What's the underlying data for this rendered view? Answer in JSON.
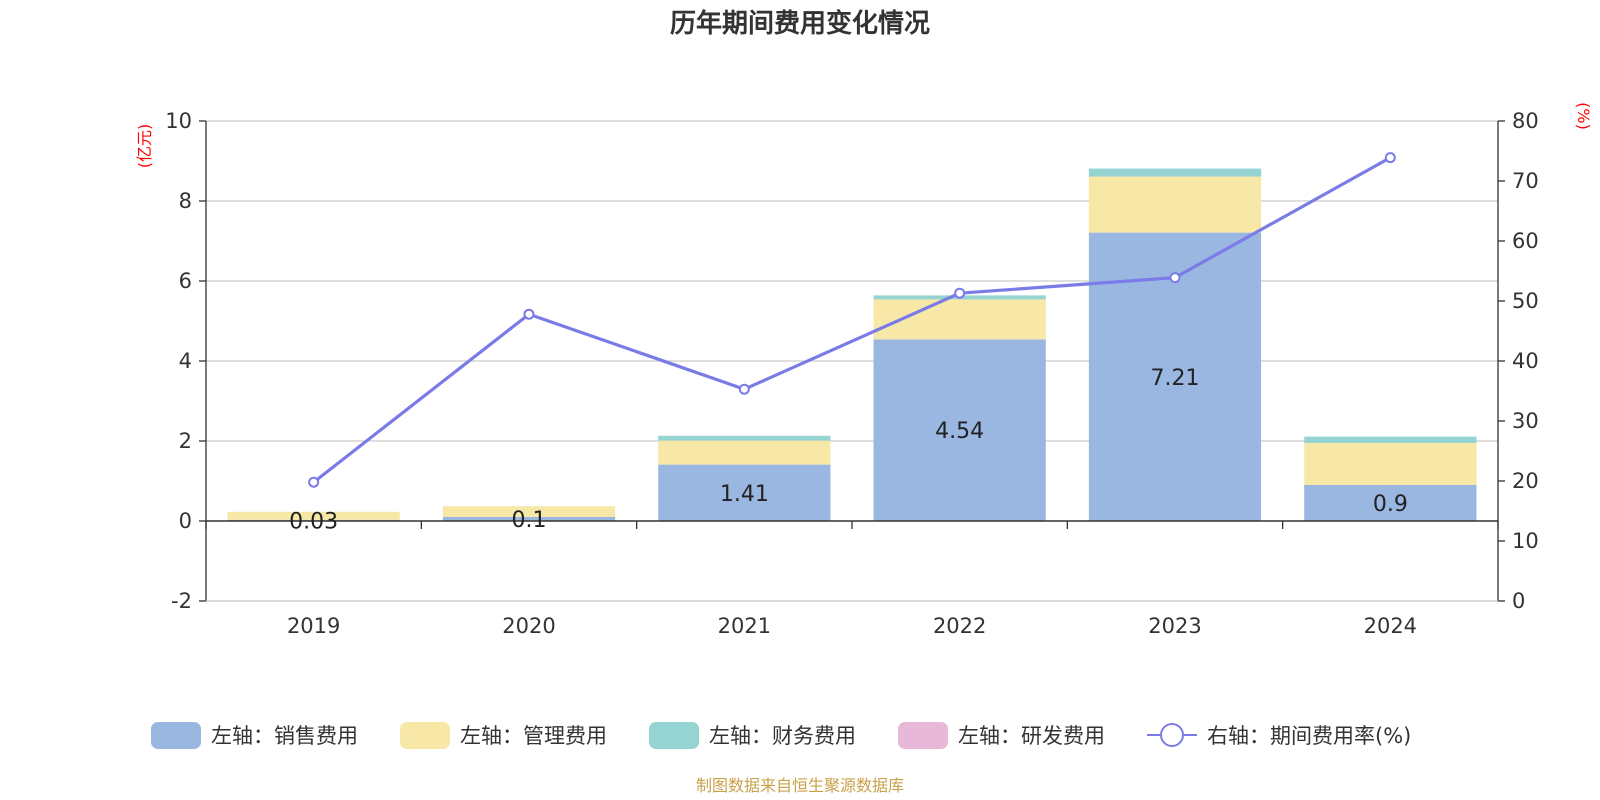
{
  "chart_data": {
    "type": "bar",
    "title": "历年期间费用变化情况",
    "categories": [
      "2019",
      "2020",
      "2021",
      "2022",
      "2023",
      "2024"
    ],
    "left_axis": {
      "unit": "(亿元)",
      "ylim": [
        -2,
        10
      ],
      "ticks": [
        -2,
        0,
        2,
        4,
        6,
        8,
        10
      ]
    },
    "right_axis": {
      "unit": "(%)",
      "ylim": [
        0,
        80
      ],
      "ticks": [
        0,
        10,
        20,
        30,
        40,
        50,
        60,
        70,
        80
      ]
    },
    "series": [
      {
        "name": "左轴：销售费用",
        "kind": "bar",
        "stack": "fee",
        "color": "#9ab7e2",
        "values": [
          0.03,
          0.1,
          1.41,
          4.54,
          7.21,
          0.9
        ],
        "labels": [
          "0.03",
          "0.1",
          "1.41",
          "4.54",
          "7.21",
          "0.9"
        ]
      },
      {
        "name": "左轴：管理费用",
        "kind": "bar",
        "stack": "fee",
        "color": "#f8e8a8",
        "values": [
          0.2,
          0.27,
          0.6,
          1.0,
          1.4,
          1.05
        ]
      },
      {
        "name": "左轴：财务费用",
        "kind": "bar",
        "stack": "fee",
        "color": "#96d3d3",
        "values": [
          0.0,
          0.0,
          0.12,
          0.1,
          0.2,
          0.16
        ]
      },
      {
        "name": "左轴：研发费用",
        "kind": "bar",
        "stack": "fee",
        "color": "#e8b8d8",
        "values": [
          0,
          0,
          0,
          0,
          0,
          0
        ]
      },
      {
        "name": "右轴：期间费用率(%)",
        "kind": "line",
        "axis": "right",
        "color": "#7b7be8",
        "values": [
          19.8,
          47.8,
          35.3,
          51.3,
          53.9,
          73.9
        ]
      }
    ]
  },
  "footer": {
    "source": "制图数据来自恒生聚源数据库"
  }
}
